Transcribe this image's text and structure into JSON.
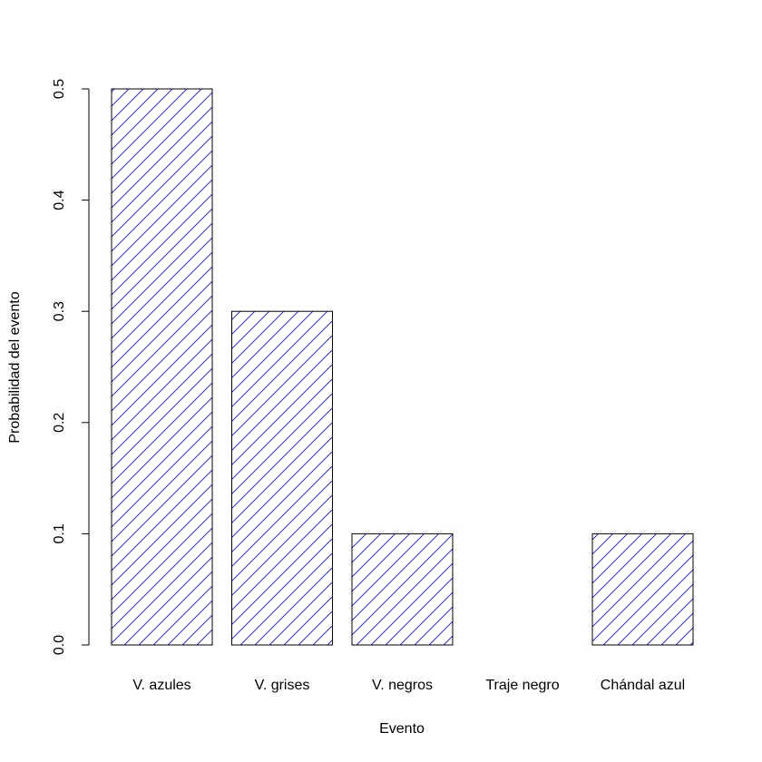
{
  "chart_data": {
    "type": "bar",
    "title": "",
    "xlabel": "Evento",
    "ylabel": "Probabilidad del evento",
    "categories": [
      "V. azules",
      "V. grises",
      "V. negros",
      "Traje negro",
      "Chándal azul"
    ],
    "values": [
      0.5,
      0.3,
      0.1,
      0.0,
      0.1
    ],
    "ylim": [
      0,
      0.5
    ],
    "yticks": [
      0.0,
      0.1,
      0.2,
      0.3,
      0.4,
      0.5
    ],
    "ytick_labels": [
      "0.0",
      "0.1",
      "0.2",
      "0.3",
      "0.4",
      "0.5"
    ],
    "grid": false,
    "bar_fill": "hatched",
    "colors": {
      "hatch": "#0000ff",
      "bar_border": "#000000",
      "axis": "#000000",
      "background": "#ffffff"
    }
  }
}
